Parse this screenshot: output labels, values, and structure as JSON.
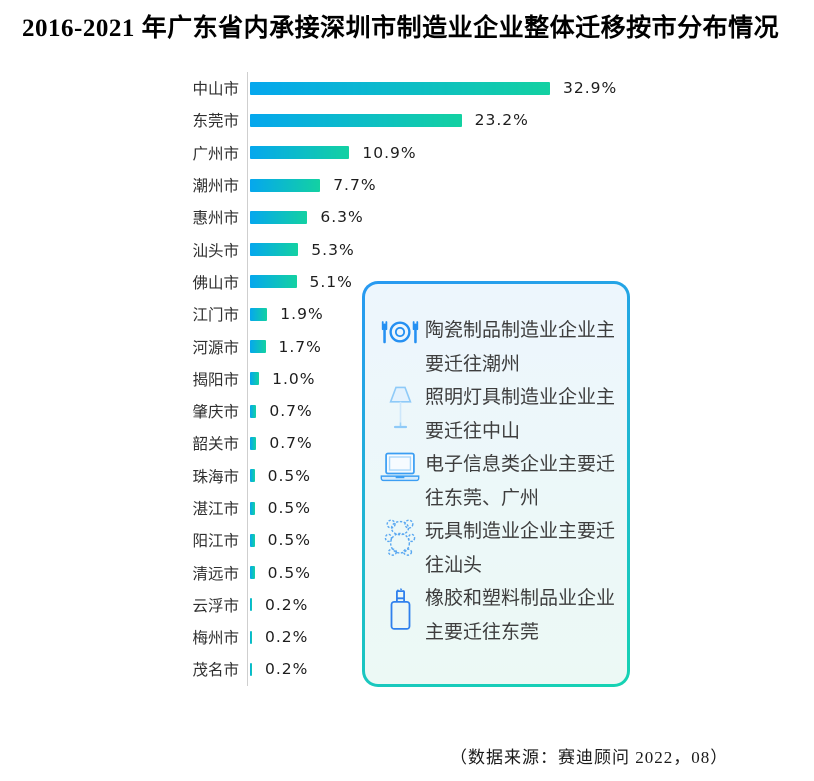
{
  "title": "2016-2021 年广东省内承接深圳市制造业企业整体迁移按市分布情况",
  "source_note": "（数据来源：赛迪顾问 2022，08）",
  "colors": {
    "bar_gradient_start": "#05a7ee",
    "bar_gradient_end": "#13d1a2",
    "box_border_top": "#2899f2",
    "box_border_bottom": "#16d3b2",
    "box_bg_top": "#edf6fd",
    "box_bg_bottom": "#ecf9f5",
    "icon_blue": "#2590f2"
  },
  "chart_data": {
    "type": "bar",
    "orientation": "horizontal",
    "title": "2016-2021 年广东省内承接深圳市制造业企业整体迁移按市分布情况",
    "categories": [
      "中山市",
      "东莞市",
      "广州市",
      "潮州市",
      "惠州市",
      "汕头市",
      "佛山市",
      "江门市",
      "河源市",
      "揭阳市",
      "肇庆市",
      "韶关市",
      "珠海市",
      "湛江市",
      "阳江市",
      "清远市",
      "云浮市",
      "梅州市",
      "茂名市"
    ],
    "values": [
      32.9,
      23.2,
      10.9,
      7.7,
      6.3,
      5.3,
      5.1,
      1.9,
      1.7,
      1.0,
      0.7,
      0.7,
      0.5,
      0.5,
      0.5,
      0.5,
      0.2,
      0.2,
      0.2
    ],
    "value_labels": [
      "32.9%",
      "23.2%",
      "10.9%",
      "7.7%",
      "6.3%",
      "5.3%",
      "5.1%",
      "1.9%",
      "1.7%",
      "1.0%",
      "0.7%",
      "0.7%",
      "0.5%",
      "0.5%",
      "0.5%",
      "0.5%",
      "0.2%",
      "0.2%",
      "0.2%"
    ],
    "unit": "%",
    "xlim": [
      0,
      35
    ],
    "grid": false,
    "legend": "none",
    "bar_gradient": [
      "#05a7ee",
      "#13d1a2"
    ]
  },
  "callout": {
    "items": [
      {
        "icon": "tableware-icon",
        "text": "陶瓷制品制造业企业主要迁往潮州"
      },
      {
        "icon": "desk-lamp-icon",
        "text": "照明灯具制造业企业主要迁往中山"
      },
      {
        "icon": "laptop-icon",
        "text": "电子信息类企业主要迁往东莞、广州"
      },
      {
        "icon": "teddy-bear-icon",
        "text": "玩具制造业企业主要迁往汕头"
      },
      {
        "icon": "glue-bottle-icon",
        "text": "橡胶和塑料制品业企业主要迁往东莞"
      }
    ]
  }
}
